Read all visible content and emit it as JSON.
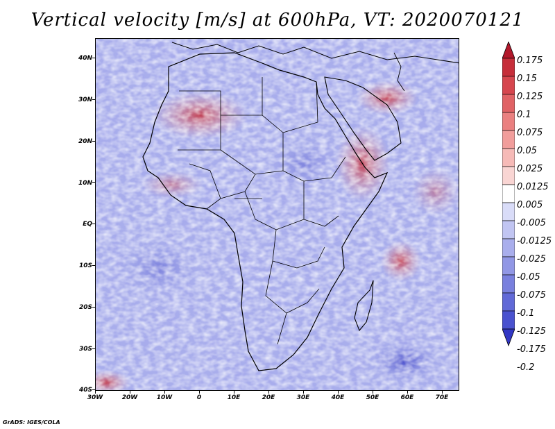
{
  "title": "Vertical velocity [m/s] at 600hPa, VT: 2020070121",
  "map": {
    "lat_labels": [
      "40N",
      "30N",
      "20N",
      "10N",
      "EQ",
      "10S",
      "20S",
      "30S",
      "40S"
    ],
    "lon_labels": [
      "30W",
      "20W",
      "10W",
      "0",
      "10E",
      "20E",
      "30E",
      "40E",
      "50E",
      "60E",
      "70E"
    ],
    "lon_range": [
      -30,
      75
    ],
    "lat_range": [
      -40,
      45
    ]
  },
  "colorbar": {
    "labels": [
      "0.175",
      "0.15",
      "0.125",
      "0.1",
      "0.075",
      "0.05",
      "0.025",
      "0.0125",
      "0.005",
      "-0.005",
      "-0.0125",
      "-0.025",
      "-0.05",
      "-0.075",
      "-0.1",
      "-0.125",
      "-0.175",
      "-0.2"
    ],
    "colors": [
      "#b2182b",
      "#c62e3a",
      "#d6464e",
      "#e06265",
      "#ea8080",
      "#f19d9b",
      "#f6bab7",
      "#f9d5d3",
      "#ffffff",
      "#d9dcf8",
      "#c1c5f2",
      "#a9aeec",
      "#9197e5",
      "#7980de",
      "#6169d7",
      "#4a52cf",
      "#3237c4"
    ]
  },
  "credit": "GrADS: IGES/COLA"
}
